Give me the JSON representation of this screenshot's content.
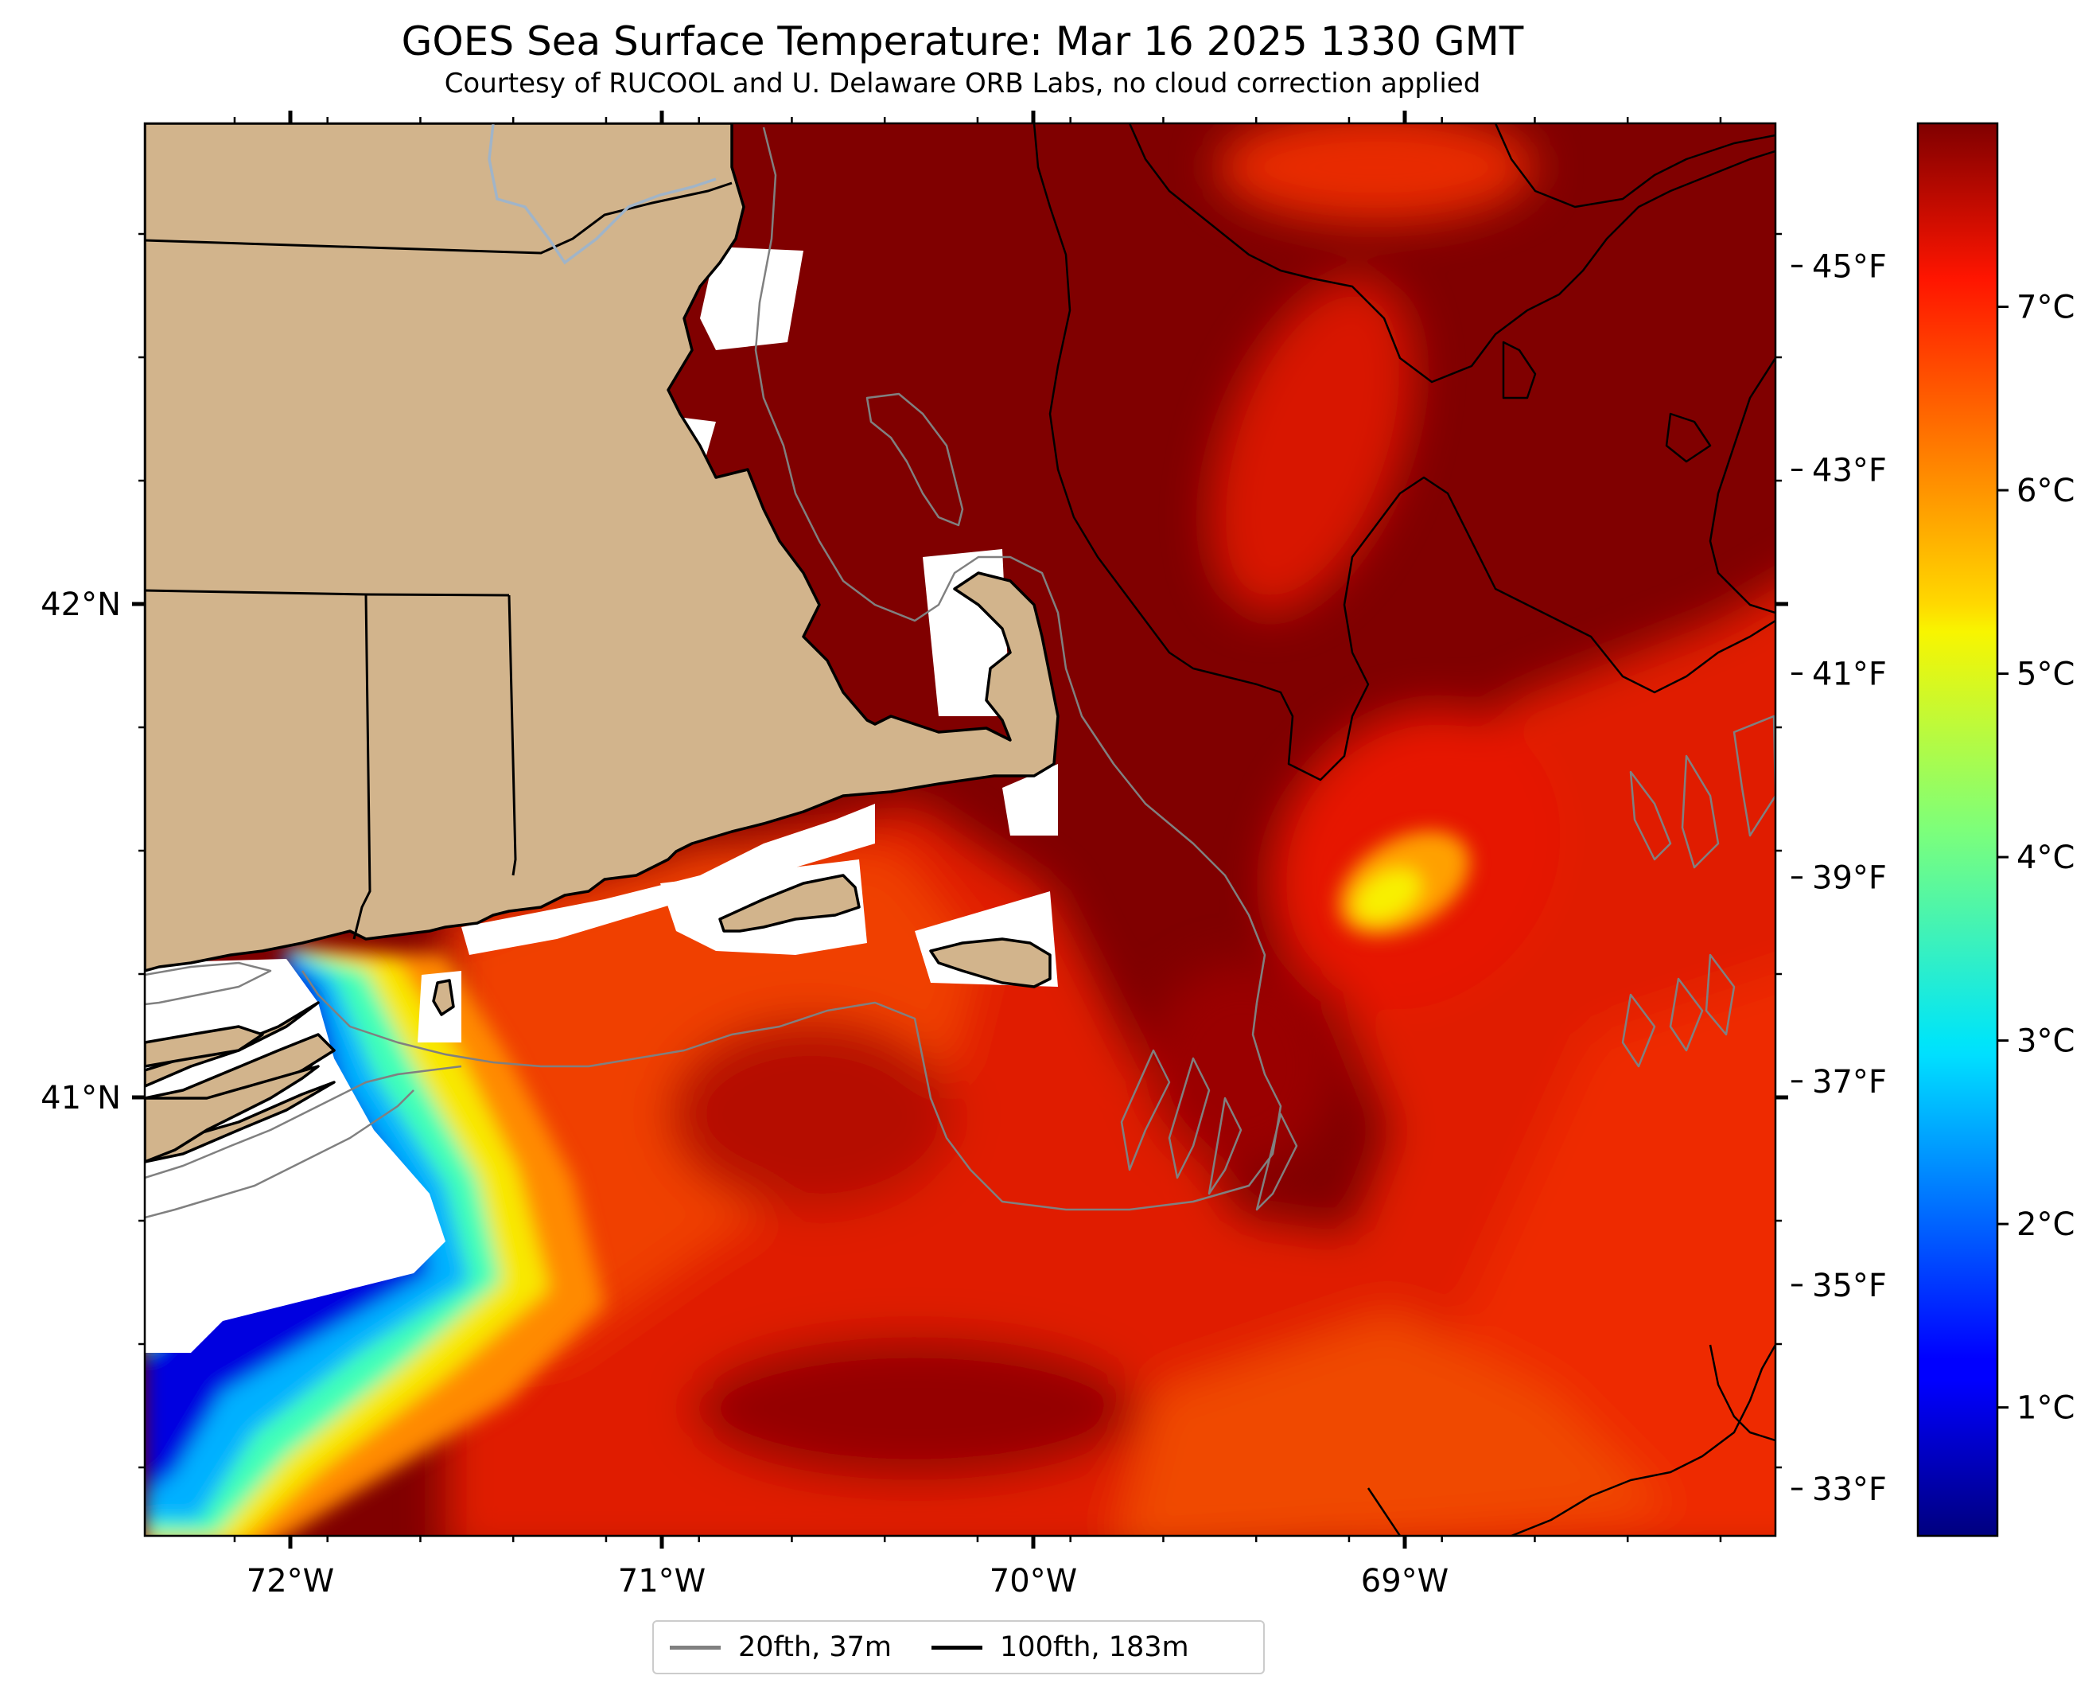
{
  "title": "GOES Sea Surface Temperature: Mar 16 2025 1330 GMT",
  "subtitle": "Courtesy of RUCOOL and U. Delaware ORB Labs, no cloud correction applied",
  "map": {
    "longitude_labels": [
      "72°W",
      "71°W",
      "70°W",
      "69°W"
    ],
    "latitude_labels": [
      "42°N",
      "41°N"
    ],
    "longitudes": [
      -72,
      -71,
      -70,
      -69
    ],
    "latitudes": [
      42,
      41
    ],
    "extent": {
      "lon": [
        -72.4,
        -68.0
      ],
      "lat": [
        40.15,
        43.0
      ]
    },
    "colors": {
      "land": "#d2b48c",
      "ocean_warm": "#800000",
      "no_data": "#ffffff",
      "contour_20fth": "#808080",
      "contour_100fth": "#000000"
    }
  },
  "colorbar": {
    "colormap": "jet",
    "range_c": [
      0.3,
      8.0
    ],
    "celsius_labels": [
      "1°C",
      "2°C",
      "3°C",
      "4°C",
      "5°C",
      "6°C",
      "7°C"
    ],
    "celsius_values": [
      1,
      2,
      3,
      4,
      5,
      6,
      7
    ],
    "fahrenheit_labels": [
      "33°F",
      "35°F",
      "37°F",
      "39°F",
      "41°F",
      "43°F",
      "45°F"
    ],
    "fahrenheit_values": [
      33,
      35,
      37,
      39,
      41,
      43,
      45
    ]
  },
  "legend": {
    "items": [
      {
        "label": "20fth, 37m",
        "color": "#808080"
      },
      {
        "label": "100fth, 183m",
        "color": "#000000"
      }
    ]
  }
}
